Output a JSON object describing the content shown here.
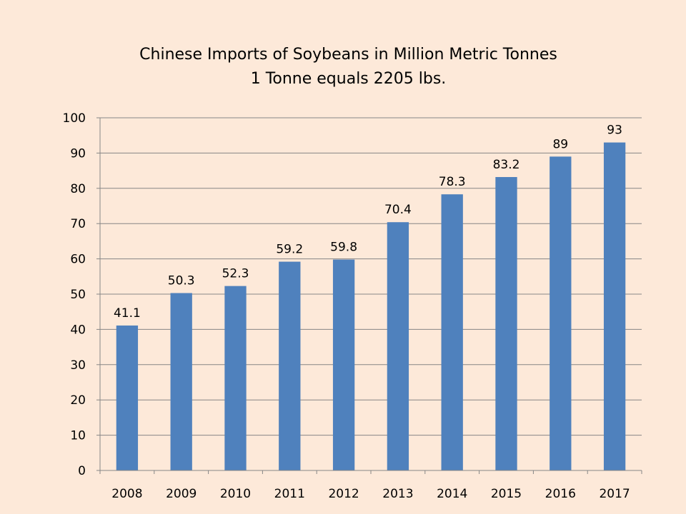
{
  "colors": {
    "background": "#FDE9D9",
    "bar": "#4F81BD",
    "grid": "#868686",
    "axis": "#868686"
  },
  "chart_data": {
    "type": "bar",
    "title": "Chinese Imports of Soybeans in Million Metric Tonnes",
    "subtitle": "1 Tonne equals 2205 lbs.",
    "xlabel": "",
    "ylabel": "",
    "categories": [
      "2008",
      "2009",
      "2010",
      "2011",
      "2012",
      "2013",
      "2014",
      "2015",
      "2016",
      "2017"
    ],
    "values": [
      41.1,
      50.3,
      52.3,
      59.2,
      59.8,
      70.4,
      78.3,
      83.2,
      89,
      93
    ],
    "value_labels": [
      "41.1",
      "50.3",
      "52.3",
      "59.2",
      "59.8",
      "70.4",
      "78.3",
      "83.2",
      "89",
      "93"
    ],
    "ylim": [
      0,
      100
    ],
    "yticks": [
      0,
      10,
      20,
      30,
      40,
      50,
      60,
      70,
      80,
      90,
      100
    ],
    "grid": true,
    "legend": "none"
  }
}
